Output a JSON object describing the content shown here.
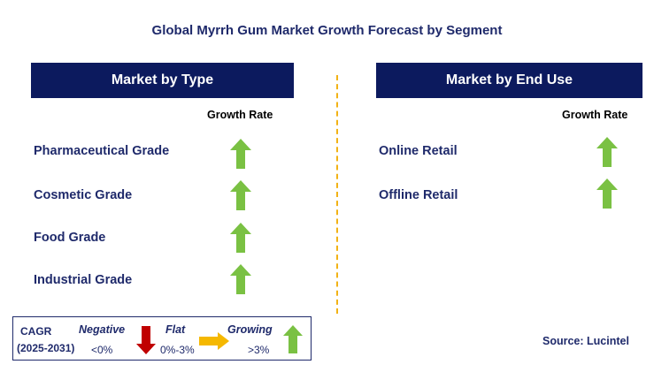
{
  "title": "Global Myrrh Gum Market Growth Forecast by Segment",
  "left_panel": {
    "header": "Market by Type",
    "column_label": "Growth Rate",
    "rows": [
      {
        "label": "Pharmaceutical Grade",
        "trend": "growing"
      },
      {
        "label": "Cosmetic Grade",
        "trend": "growing"
      },
      {
        "label": "Food Grade",
        "trend": "growing"
      },
      {
        "label": "Industrial Grade",
        "trend": "growing"
      }
    ]
  },
  "right_panel": {
    "header": "Market by End Use",
    "column_label": "Growth Rate",
    "rows": [
      {
        "label": "Online Retail",
        "trend": "growing"
      },
      {
        "label": "Offline Retail",
        "trend": "growing"
      }
    ]
  },
  "legend": {
    "cagr_label": "CAGR",
    "period": "(2025-2031)",
    "negative_label": "Negative",
    "negative_range": "<0%",
    "flat_label": "Flat",
    "flat_range": "0%-3%",
    "growing_label": "Growing",
    "growing_range": ">3%"
  },
  "source": "Source: Lucintel",
  "colors": {
    "header_bg": "#0c1a5e",
    "text_navy": "#1f2a6b",
    "arrow_green": "#7ac143",
    "arrow_red": "#c00000",
    "arrow_yellow": "#f5b800",
    "divider": "#f2b215"
  }
}
